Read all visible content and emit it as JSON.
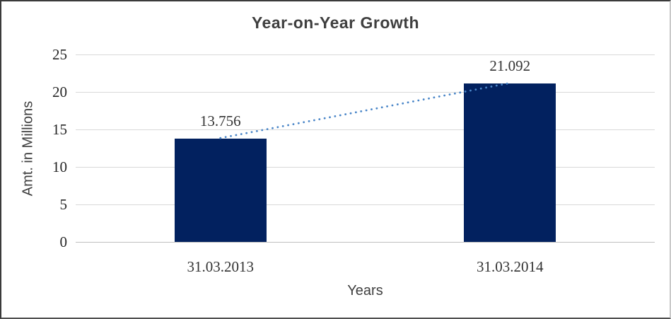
{
  "chart_data": {
    "type": "bar",
    "title": "Year-on-Year Growth",
    "categories": [
      "31.03.2013",
      "31.03.2014"
    ],
    "values": [
      13.756,
      21.092
    ],
    "data_labels": [
      "13.756",
      "21.092"
    ],
    "xlabel": "Years",
    "ylabel": "Amt. in Millions",
    "ylim": [
      0,
      25
    ],
    "yticks": [
      0,
      5,
      10,
      15,
      20,
      25
    ],
    "grid": true,
    "legend_position": "none",
    "bar_color": "#02215f",
    "gridline_color": "#d9d9d9",
    "axis_line_color": "#bfbfbf",
    "title_color": "#3f3f3f",
    "label_color": "#333333",
    "trendline": {
      "style": "dotted",
      "color": "#4a86c8",
      "x": [
        "31.03.2013",
        "31.03.2014"
      ],
      "y": [
        13.756,
        21.092
      ]
    }
  }
}
